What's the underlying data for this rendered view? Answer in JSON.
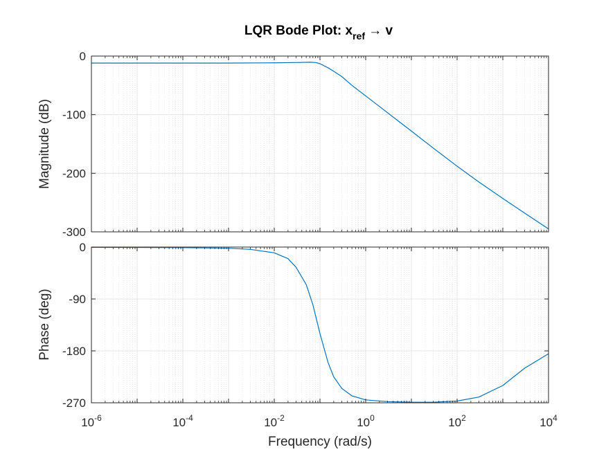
{
  "chart_data": [
    {
      "type": "line",
      "title_main": "LQR Bode Plot: x",
      "title_subscript": "ref",
      "title_tail": " → v",
      "xscale": "log",
      "xlim": [
        1e-06,
        10000.0
      ],
      "ylabel": "Magnitude (dB)",
      "ylim": [
        -300,
        0
      ],
      "yticks": [
        0,
        -100,
        -200,
        -300
      ],
      "ytick_labels": [
        "0",
        "-100",
        "-200",
        "-300"
      ],
      "grid": true,
      "series": [
        {
          "color": "#0072BD",
          "x": [
            1e-06,
            1e-05,
            0.0001,
            0.001,
            0.01,
            0.03,
            0.06,
            0.08,
            0.1,
            0.15,
            0.2,
            0.3,
            0.5,
            1,
            2,
            5,
            10,
            30,
            100,
            300,
            1000,
            3000,
            10000
          ],
          "y": [
            -12,
            -12,
            -12,
            -12,
            -11.5,
            -11,
            -10.5,
            -11,
            -13,
            -20,
            -26,
            -35,
            -50,
            -68,
            -86,
            -110,
            -128,
            -157,
            -188,
            -215,
            -243,
            -268,
            -295
          ]
        }
      ]
    },
    {
      "type": "line",
      "xscale": "log",
      "xlim": [
        1e-06,
        10000.0
      ],
      "xticks": [
        1e-06,
        0.0001,
        0.01,
        1,
        100,
        10000
      ],
      "xtick_base": [
        "10",
        "10",
        "10",
        "10",
        "10",
        "10"
      ],
      "xtick_exp": [
        "-6",
        "-4",
        "-2",
        "0",
        "2",
        "4"
      ],
      "xlabel": "Frequency  (rad/s)",
      "ylabel": "Phase (deg)",
      "ylim": [
        -270,
        0
      ],
      "yticks": [
        0,
        -90,
        -180,
        -270
      ],
      "ytick_labels": [
        "0",
        "-90",
        "-180",
        "-270"
      ],
      "grid": true,
      "series": [
        {
          "color": "#0072BD",
          "x": [
            1e-06,
            1e-05,
            0.0001,
            0.001,
            0.003,
            0.01,
            0.02,
            0.03,
            0.05,
            0.07,
            0.1,
            0.15,
            0.2,
            0.3,
            0.5,
            1,
            3,
            10,
            30,
            100,
            300,
            1000,
            3000,
            10000
          ],
          "y": [
            -0.5,
            -0.6,
            -1,
            -2,
            -4,
            -10,
            -20,
            -35,
            -65,
            -100,
            -150,
            -200,
            -225,
            -245,
            -258,
            -265,
            -268,
            -269,
            -269,
            -267,
            -260,
            -240,
            -210,
            -185
          ]
        }
      ]
    }
  ]
}
